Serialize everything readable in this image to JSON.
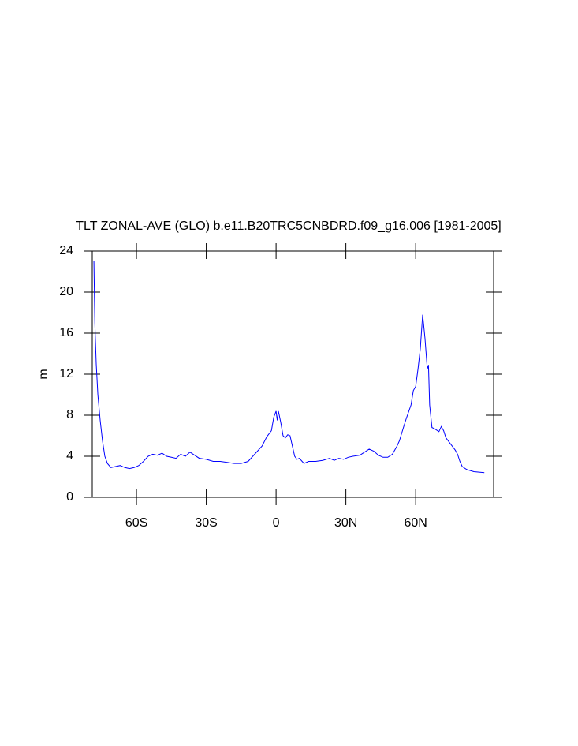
{
  "chart_data": {
    "type": "line",
    "title": "TLT ZONAL-AVE (GLO) b.e11.B20TRC5CNBDRD.f09_g16.006 [1981-2005]",
    "ylabel": "m",
    "x": [
      -78.3,
      -77.9,
      -77.3,
      -76.6,
      -75.6,
      -74.6,
      -73.6,
      -72.5,
      -71,
      -69,
      -67,
      -65,
      -63,
      -61,
      -59,
      -57,
      -55,
      -53,
      -51,
      -49,
      -47,
      -45,
      -43,
      -41,
      -39,
      -37,
      -35,
      -33,
      -30,
      -27,
      -24,
      -21,
      -18,
      -15,
      -12,
      -10,
      -8,
      -6,
      -4,
      -2,
      -1,
      0,
      0.5,
      1,
      2,
      3,
      4,
      5,
      6,
      7,
      8,
      9,
      10,
      12,
      14,
      17,
      20,
      23,
      25,
      27,
      29,
      31,
      33,
      36,
      38,
      40,
      42,
      44,
      46,
      48,
      50,
      52,
      53,
      55,
      56,
      58,
      59,
      60,
      61,
      62,
      63,
      64,
      65,
      65.5,
      66,
      67,
      68,
      70,
      71,
      72,
      73,
      75,
      77,
      78,
      79,
      80,
      82,
      85,
      89.5
    ],
    "series": [
      {
        "name": "TLT",
        "color": "#0000ff",
        "values": [
          23,
          17,
          13,
          10,
          7.5,
          5.5,
          4,
          3.3,
          2.9,
          3.0,
          3.1,
          2.9,
          2.8,
          2.9,
          3.1,
          3.5,
          4.0,
          4.2,
          4.1,
          4.3,
          4.0,
          3.9,
          3.8,
          4.2,
          4.0,
          4.4,
          4.1,
          3.8,
          3.7,
          3.5,
          3.5,
          3.4,
          3.3,
          3.3,
          3.5,
          4.0,
          4.5,
          5.0,
          5.9,
          6.5,
          7.8,
          8.4,
          7.5,
          8.4,
          7.3,
          6.0,
          5.8,
          6.1,
          6.0,
          5.0,
          4.0,
          3.7,
          3.8,
          3.3,
          3.5,
          3.5,
          3.6,
          3.8,
          3.6,
          3.8,
          3.7,
          3.9,
          4.0,
          4.1,
          4.4,
          4.7,
          4.5,
          4.1,
          3.9,
          3.9,
          4.2,
          5.0,
          5.5,
          7.0,
          7.7,
          9.0,
          10.4,
          10.8,
          12.5,
          14.5,
          17.8,
          15.5,
          12.5,
          12.9,
          9.0,
          6.8,
          6.7,
          6.4,
          6.9,
          6.5,
          5.8,
          5.2,
          4.6,
          4.2,
          3.5,
          3.0,
          2.7,
          2.5,
          2.4
        ]
      }
    ],
    "xlim": [
      -79,
      93.5
    ],
    "xticks": [
      {
        "value": -60,
        "label": "60S"
      },
      {
        "value": -30,
        "label": "30S"
      },
      0,
      {
        "value": 30,
        "label": "30N"
      },
      {
        "value": 60,
        "label": "60N"
      }
    ],
    "ylim": [
      0,
      24
    ],
    "yticks": [
      0,
      4,
      8,
      12,
      16,
      20,
      24
    ]
  }
}
